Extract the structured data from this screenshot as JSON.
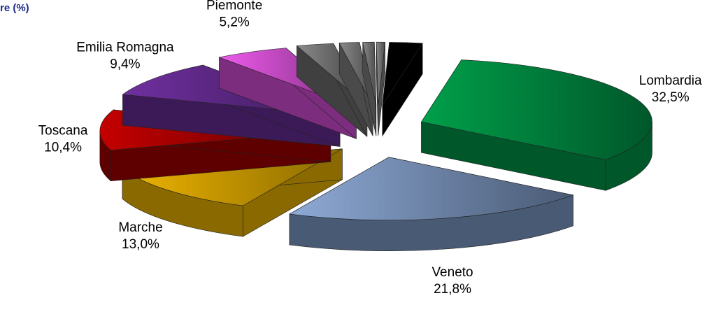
{
  "title": "re (%)",
  "chart_data": {
    "type": "pie",
    "exploded": true,
    "three_d": true,
    "value_format": "comma-decimal-percent",
    "slices": [
      {
        "label": "Lombardia",
        "value": 32.5,
        "value_text": "32,5%",
        "color": "#00a04a",
        "side": "#00572a"
      },
      {
        "label": "Veneto",
        "value": 21.8,
        "value_text": "21,8%",
        "color": "#8eaad6",
        "side": "#495a74"
      },
      {
        "label": "Marche",
        "value": 13.0,
        "value_text": "13,0%",
        "color": "#efb500",
        "side": "#8a6a00"
      },
      {
        "label": "Toscana",
        "value": 10.4,
        "value_text": "10,4%",
        "color": "#c40000",
        "side": "#5e0000"
      },
      {
        "label": "Emilia Romagna",
        "value": 9.4,
        "value_text": "9,4%",
        "color": "#7030a0",
        "side": "#3c1a57"
      },
      {
        "label": "Piemonte",
        "value": 5.2,
        "value_text": "5,2%",
        "color": "#ee5ced",
        "side": "#7d2d7e"
      },
      {
        "label": "",
        "value": 2.6,
        "value_text": "",
        "color": "#8a8a8a",
        "side": "#404040"
      },
      {
        "label": "",
        "value": 1.4,
        "value_text": "",
        "color": "#8a8a8a",
        "side": "#4a4a4a"
      },
      {
        "label": "",
        "value": 0.8,
        "value_text": "",
        "color": "#8a8a8a",
        "side": "#4a4a4a"
      },
      {
        "label": "",
        "value": 0.6,
        "value_text": "",
        "color": "#8a8a8a",
        "side": "#4a4a4a"
      },
      {
        "label": "",
        "value": 2.3,
        "value_text": "",
        "color": "#000000",
        "side": "#000000"
      }
    ]
  }
}
